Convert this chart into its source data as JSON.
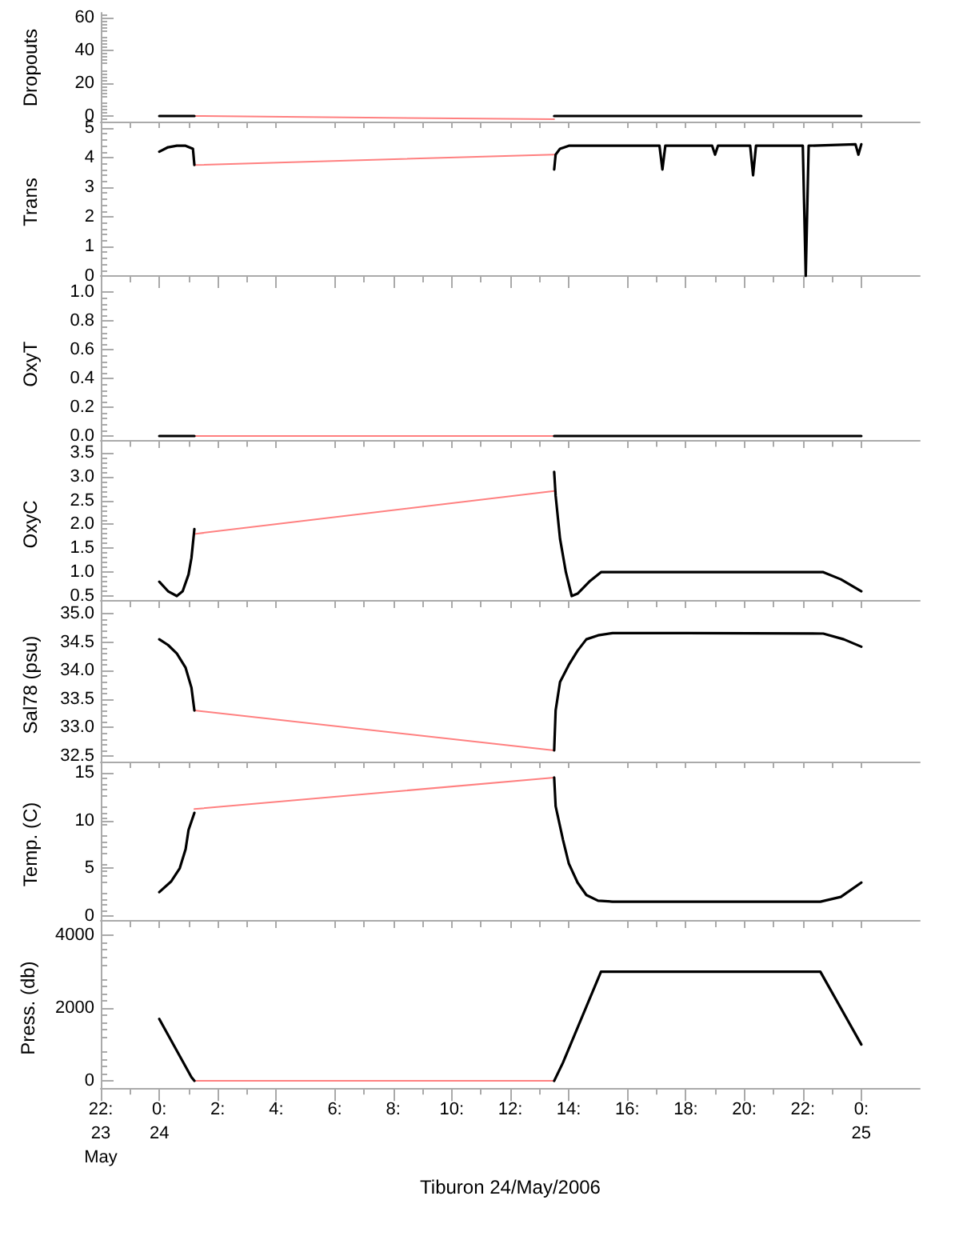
{
  "chart_data": [
    {
      "type": "line",
      "ylabel": "Dropouts",
      "xlim": [
        -2,
        26
      ],
      "ylim": [
        -4,
        63
      ],
      "yticks": [
        0,
        20,
        40,
        60
      ],
      "tick_labels": "y",
      "xticks": [
        -2,
        0,
        2,
        4,
        6,
        8,
        10,
        12,
        14,
        16,
        18,
        20,
        22,
        24
      ],
      "series": [
        {
          "color": "#ff8080",
          "x": [
            1.2,
            13.5
          ],
          "values": [
            0,
            -2
          ]
        },
        {
          "color": "#000000",
          "x": [
            0,
            1.2,
            null,
            13.5,
            24
          ],
          "values": [
            0,
            0,
            null,
            0,
            0
          ]
        }
      ]
    },
    {
      "type": "line",
      "ylabel": "Trans",
      "xlim": [
        -2,
        26
      ],
      "ylim": [
        0,
        5
      ],
      "yticks": [
        0,
        1,
        2,
        3,
        4,
        5
      ],
      "tick_labels": "y",
      "xticks": [
        -2,
        0,
        2,
        4,
        6,
        8,
        10,
        12,
        14,
        16,
        18,
        20,
        22,
        24
      ],
      "series": [
        {
          "color": "#ff8080",
          "x": [
            1.2,
            13.5
          ],
          "values": [
            3.75,
            4.1
          ]
        },
        {
          "color": "#000000",
          "x": [
            0,
            0.3,
            0.6,
            0.9,
            1.15,
            1.2,
            null,
            13.5,
            13.55,
            13.7,
            14.0,
            14.5,
            17.1,
            17.2,
            17.3,
            18.9,
            19.0,
            19.1,
            20.2,
            20.3,
            20.4,
            22.0,
            22.1,
            22.2,
            23.8,
            23.9,
            24
          ],
          "values": [
            4.2,
            4.35,
            4.4,
            4.4,
            4.3,
            3.75,
            null,
            3.6,
            4.1,
            4.3,
            4.4,
            4.4,
            4.4,
            3.6,
            4.4,
            4.4,
            4.1,
            4.4,
            4.4,
            3.4,
            4.4,
            4.4,
            0,
            4.4,
            4.45,
            4.1,
            4.45
          ]
        }
      ]
    },
    {
      "type": "line",
      "ylabel": "OxyT",
      "xlim": [
        -2,
        26
      ],
      "ylim": [
        -0.03,
        1.03
      ],
      "yticks": [
        {
          "value": 0,
          "label": "0.0"
        },
        0.2,
        0.4,
        0.6,
        0.8,
        {
          "value": 1,
          "label": "1.0"
        }
      ],
      "tick_labels": "y",
      "xticks": [
        -2,
        0,
        2,
        4,
        6,
        8,
        10,
        12,
        14,
        16,
        18,
        20,
        22,
        24
      ],
      "series": [
        {
          "color": "#ff8080",
          "x": [
            1.2,
            13.5
          ],
          "values": [
            0,
            0
          ]
        },
        {
          "color": "#000000",
          "x": [
            0,
            1.2,
            null,
            13.5,
            24
          ],
          "values": [
            0,
            0,
            null,
            0,
            0
          ]
        }
      ]
    },
    {
      "type": "line",
      "ylabel": "OxyC",
      "xlim": [
        -2,
        26
      ],
      "ylim": [
        0.4,
        3.6
      ],
      "yticks": [
        0.5,
        {
          "value": 1,
          "label": "1.0"
        },
        1.5,
        {
          "value": 2,
          "label": "2.0"
        },
        2.5,
        {
          "value": 3,
          "label": "3.0"
        },
        3.5
      ],
      "tick_labels": "y",
      "xticks": [
        -2,
        0,
        2,
        4,
        6,
        8,
        10,
        12,
        14,
        16,
        18,
        20,
        22,
        24
      ],
      "series": [
        {
          "color": "#ff8080",
          "x": [
            1.2,
            13.5
          ],
          "values": [
            1.8,
            2.7
          ]
        },
        {
          "color": "#000000",
          "x": [
            0,
            0.3,
            0.6,
            0.8,
            1.0,
            1.1,
            1.2,
            null,
            13.5,
            13.55,
            13.7,
            13.9,
            14.1,
            14.3,
            14.7,
            15.1,
            18,
            22.7,
            23.3,
            24
          ],
          "values": [
            0.8,
            0.6,
            0.5,
            0.6,
            0.95,
            1.3,
            1.9,
            null,
            3.1,
            2.6,
            1.7,
            1.0,
            0.5,
            0.55,
            0.8,
            1.0,
            1.0,
            1.0,
            0.85,
            0.6
          ]
        }
      ]
    },
    {
      "type": "line",
      "ylabel": "Sal78 (psu)",
      "xlim": [
        -2,
        26
      ],
      "ylim": [
        32.4,
        35.1
      ],
      "yticks": [
        32.5,
        {
          "value": 33,
          "label": "33.0"
        },
        33.5,
        {
          "value": 34,
          "label": "34.0"
        },
        34.5,
        {
          "value": 35,
          "label": "35.0"
        }
      ],
      "tick_labels": "y",
      "xticks": [
        -2,
        0,
        2,
        4,
        6,
        8,
        10,
        12,
        14,
        16,
        18,
        20,
        22,
        24
      ],
      "series": [
        {
          "color": "#ff8080",
          "x": [
            1.2,
            13.5
          ],
          "values": [
            33.3,
            32.6
          ]
        },
        {
          "color": "#000000",
          "x": [
            0,
            0.3,
            0.6,
            0.9,
            1.1,
            1.2,
            null,
            13.5,
            13.55,
            13.7,
            14.0,
            14.3,
            14.6,
            15.0,
            15.5,
            18,
            22.7,
            23.4,
            24
          ],
          "values": [
            34.55,
            34.45,
            34.3,
            34.05,
            33.7,
            33.3,
            null,
            32.6,
            33.3,
            33.8,
            34.1,
            34.35,
            34.55,
            34.62,
            34.66,
            34.66,
            34.65,
            34.55,
            34.42
          ]
        }
      ]
    },
    {
      "type": "line",
      "ylabel": "Temp. (C)",
      "xlim": [
        -2,
        26
      ],
      "ylim": [
        -0.5,
        15.5
      ],
      "yticks": [
        0,
        5,
        10,
        15
      ],
      "tick_labels": "y",
      "xticks": [
        -2,
        0,
        2,
        4,
        6,
        8,
        10,
        12,
        14,
        16,
        18,
        20,
        22,
        24
      ],
      "series": [
        {
          "color": "#ff8080",
          "x": [
            1.2,
            13.5
          ],
          "values": [
            11.2,
            14.5
          ]
        },
        {
          "color": "#000000",
          "x": [
            0,
            0.4,
            0.7,
            0.9,
            1.0,
            1.2,
            null,
            13.5,
            13.55,
            13.8,
            14.0,
            14.3,
            14.6,
            15.0,
            15.5,
            18,
            22.6,
            23.3,
            24
          ],
          "values": [
            2.5,
            3.6,
            5,
            7,
            9,
            10.8,
            null,
            14.5,
            11.5,
            8,
            5.5,
            3.5,
            2.2,
            1.6,
            1.5,
            1.5,
            1.5,
            2.0,
            3.5
          ]
        }
      ]
    },
    {
      "type": "line",
      "ylabel": "Press. (db)",
      "xlabel": "Tiburon 24/May/2006",
      "xlim": [
        -2,
        26
      ],
      "ylim": [
        -200,
        4200
      ],
      "yticks": [
        0,
        2000,
        4000
      ],
      "xticks": [
        {
          "value": -2,
          "label": "22:\n23\nMay"
        },
        {
          "value": 0,
          "label": "0:\n24"
        },
        {
          "value": 2,
          "label": "2:"
        },
        {
          "value": 4,
          "label": "4:"
        },
        {
          "value": 6,
          "label": "6:"
        },
        {
          "value": 8,
          "label": "8:"
        },
        {
          "value": 10,
          "label": "10:"
        },
        {
          "value": 12,
          "label": "12:"
        },
        {
          "value": 14,
          "label": "14:"
        },
        {
          "value": 16,
          "label": "16:"
        },
        {
          "value": 18,
          "label": "18:"
        },
        {
          "value": 20,
          "label": "20:"
        },
        {
          "value": 22,
          "label": "22:"
        },
        {
          "value": 24,
          "label": "0:\n25"
        }
      ],
      "series": [
        {
          "color": "#ff8080",
          "x": [
            1.2,
            13.5
          ],
          "values": [
            0,
            0
          ]
        },
        {
          "color": "#000000",
          "x": [
            0,
            1.1,
            1.2,
            null,
            13.5,
            13.8,
            15.1,
            22.6,
            24
          ],
          "values": [
            1700,
            100,
            0,
            null,
            0,
            500,
            3000,
            3000,
            1000
          ]
        }
      ]
    }
  ]
}
